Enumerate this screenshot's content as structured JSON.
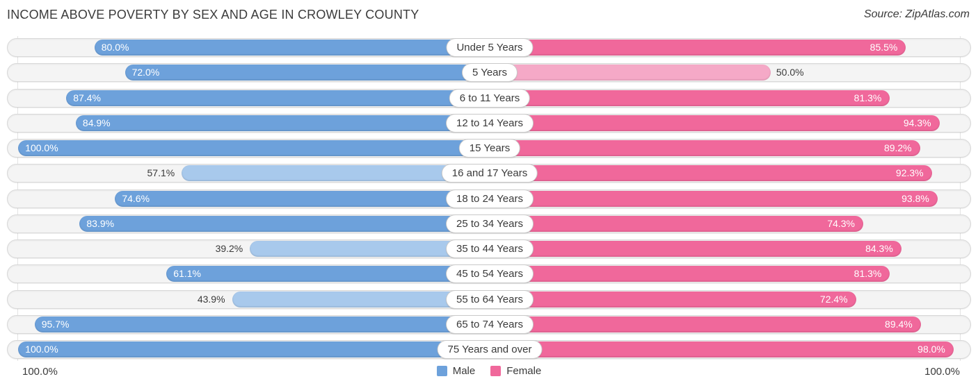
{
  "title": "INCOME ABOVE POVERTY BY SEX AND AGE IN CROWLEY COUNTY",
  "source": "Source: ZipAtlas.com",
  "axis": {
    "left_label": "100.0%",
    "right_label": "100.0%"
  },
  "legend": {
    "male": "Male",
    "female": "Female"
  },
  "colors": {
    "male": "#6da1db",
    "male_light": "#a8c9ec",
    "female": "#f0689b",
    "female_light": "#f5a9c7",
    "track": "#f4f4f4",
    "track_border": "#d8d8d8",
    "label_inside": "#ffffff",
    "label_outside": "#3a3a3a"
  },
  "chart_data": {
    "type": "bar",
    "variant": "bidirectional-horizontal",
    "title": "INCOME ABOVE POVERTY BY SEX AND AGE IN CROWLEY COUNTY",
    "categories": [
      "Under 5 Years",
      "5 Years",
      "6 to 11 Years",
      "12 to 14 Years",
      "15 Years",
      "16 and 17 Years",
      "18 to 24 Years",
      "25 to 34 Years",
      "35 to 44 Years",
      "45 to 54 Years",
      "55 to 64 Years",
      "65 to 74 Years",
      "75 Years and over"
    ],
    "series": [
      {
        "name": "Male",
        "side": "left",
        "values": [
          80.0,
          72.0,
          87.4,
          84.9,
          100.0,
          57.1,
          74.6,
          83.9,
          39.2,
          61.1,
          43.9,
          95.7,
          100.0
        ]
      },
      {
        "name": "Female",
        "side": "right",
        "values": [
          85.5,
          50.0,
          81.3,
          94.3,
          89.2,
          92.3,
          93.8,
          74.3,
          84.3,
          81.3,
          72.4,
          89.4,
          98.0
        ]
      }
    ],
    "value_suffix": "%",
    "xlim_left": [
      100,
      0
    ],
    "xlim_right": [
      0,
      100
    ],
    "axis_ticks": [
      "100.0%",
      "100.0%"
    ],
    "legend_position": "bottom-center",
    "grid": "faint vertical lines at 100% on both sides",
    "muted_style_threshold": 60
  }
}
